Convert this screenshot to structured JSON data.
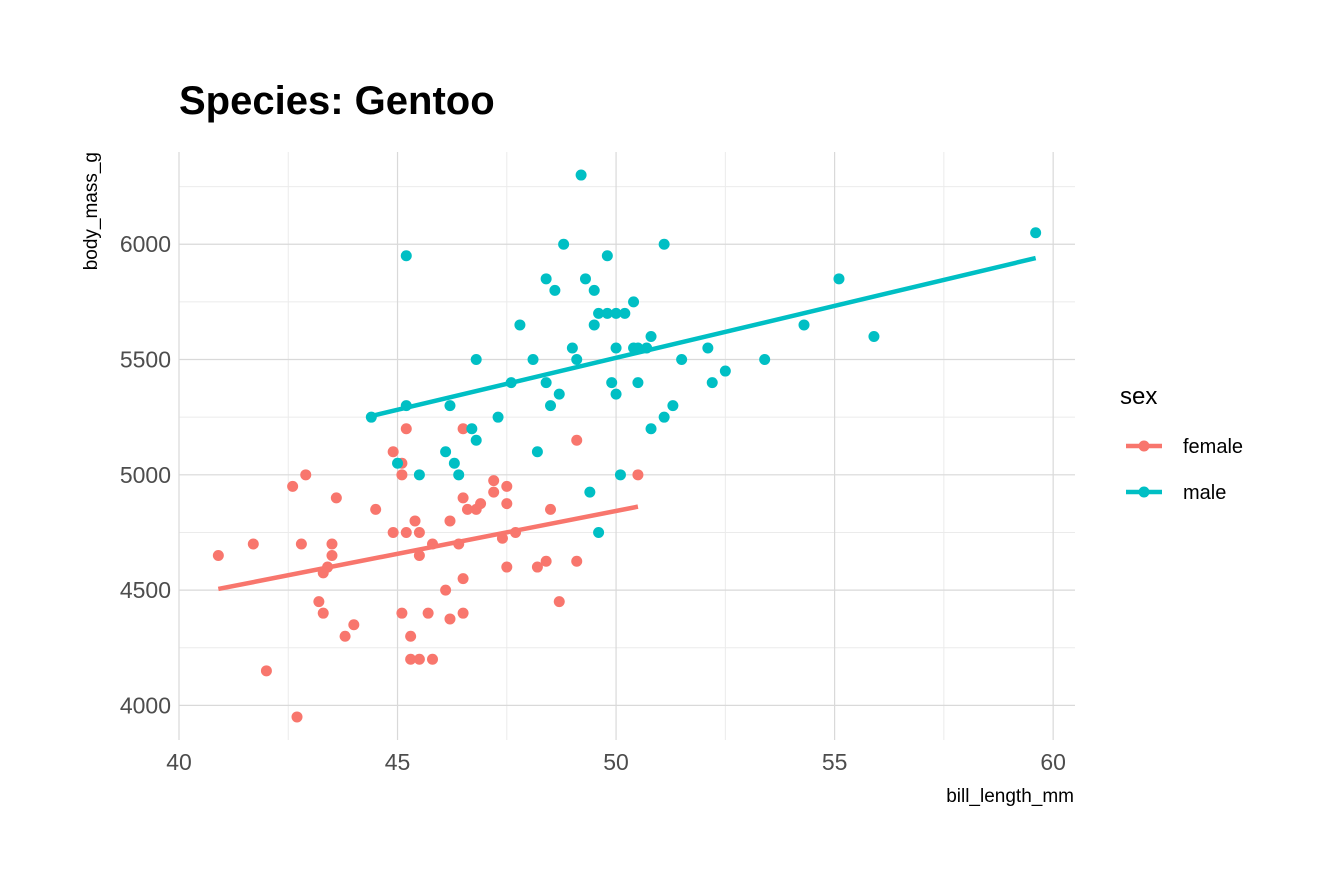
{
  "chart_data": {
    "type": "scatter",
    "title": "Species: Gentoo",
    "xlabel": "bill_length_mm",
    "ylabel": "body_mass_g",
    "xlim": [
      40,
      60.5
    ],
    "ylim": [
      3850,
      6400
    ],
    "xticks": [
      40,
      45,
      50,
      55,
      60
    ],
    "yticks": [
      4000,
      4500,
      5000,
      5500,
      6000
    ],
    "grid": true,
    "legend": {
      "title": "sex",
      "position": "right"
    },
    "series": [
      {
        "name": "female",
        "color": "#F8766D",
        "points": [
          [
            40.9,
            4650
          ],
          [
            41.7,
            4700
          ],
          [
            42.0,
            4150
          ],
          [
            42.6,
            4950
          ],
          [
            42.7,
            3950
          ],
          [
            42.8,
            4700
          ],
          [
            42.9,
            5000
          ],
          [
            43.2,
            4450
          ],
          [
            43.3,
            4575
          ],
          [
            43.3,
            4400
          ],
          [
            43.4,
            4600
          ],
          [
            43.5,
            4650
          ],
          [
            43.5,
            4700
          ],
          [
            43.6,
            4900
          ],
          [
            43.8,
            4300
          ],
          [
            44.0,
            4350
          ],
          [
            44.5,
            4850
          ],
          [
            44.9,
            4750
          ],
          [
            44.9,
            5100
          ],
          [
            45.1,
            5050
          ],
          [
            45.1,
            5000
          ],
          [
            45.1,
            4400
          ],
          [
            45.2,
            5200
          ],
          [
            45.2,
            4750
          ],
          [
            45.3,
            4300
          ],
          [
            45.3,
            4200
          ],
          [
            45.4,
            4800
          ],
          [
            45.5,
            4750
          ],
          [
            45.5,
            4650
          ],
          [
            45.5,
            4200
          ],
          [
            45.7,
            4400
          ],
          [
            45.8,
            4700
          ],
          [
            45.8,
            4200
          ],
          [
            46.1,
            4500
          ],
          [
            46.2,
            4800
          ],
          [
            46.2,
            4375
          ],
          [
            46.4,
            4700
          ],
          [
            46.5,
            4900
          ],
          [
            46.5,
            4550
          ],
          [
            46.5,
            4400
          ],
          [
            46.5,
            5200
          ],
          [
            46.6,
            4850
          ],
          [
            46.8,
            4850
          ],
          [
            46.9,
            4875
          ],
          [
            47.2,
            4975
          ],
          [
            47.2,
            4925
          ],
          [
            47.4,
            4725
          ],
          [
            47.5,
            4875
          ],
          [
            47.5,
            4600
          ],
          [
            47.5,
            4950
          ],
          [
            47.7,
            4750
          ],
          [
            48.2,
            4600
          ],
          [
            48.4,
            4625
          ],
          [
            48.5,
            4850
          ],
          [
            48.7,
            4450
          ],
          [
            49.1,
            4625
          ],
          [
            49.1,
            5150
          ],
          [
            50.5,
            5000
          ]
        ],
        "trend": [
          [
            40.9,
            4505
          ],
          [
            50.5,
            4862
          ]
        ]
      },
      {
        "name": "male",
        "color": "#00BFC4",
        "points": [
          [
            44.4,
            5250
          ],
          [
            45.0,
            5050
          ],
          [
            45.2,
            5950
          ],
          [
            45.2,
            5300
          ],
          [
            45.5,
            5000
          ],
          [
            46.1,
            5100
          ],
          [
            46.2,
            5300
          ],
          [
            46.3,
            5050
          ],
          [
            46.4,
            5000
          ],
          [
            46.7,
            5200
          ],
          [
            46.8,
            5500
          ],
          [
            46.8,
            5150
          ],
          [
            47.3,
            5250
          ],
          [
            47.6,
            5400
          ],
          [
            47.8,
            5650
          ],
          [
            48.1,
            5500
          ],
          [
            48.2,
            5100
          ],
          [
            48.4,
            5850
          ],
          [
            48.4,
            5400
          ],
          [
            48.5,
            5300
          ],
          [
            48.6,
            5800
          ],
          [
            48.7,
            5350
          ],
          [
            48.8,
            6000
          ],
          [
            49.0,
            5550
          ],
          [
            49.1,
            5500
          ],
          [
            49.2,
            6300
          ],
          [
            49.3,
            5850
          ],
          [
            49.4,
            4925
          ],
          [
            49.5,
            5800
          ],
          [
            49.5,
            5650
          ],
          [
            49.6,
            5700
          ],
          [
            49.6,
            4750
          ],
          [
            49.8,
            5950
          ],
          [
            49.8,
            5700
          ],
          [
            49.9,
            5400
          ],
          [
            50.0,
            5700
          ],
          [
            50.0,
            5550
          ],
          [
            50.0,
            5350
          ],
          [
            50.1,
            5000
          ],
          [
            50.2,
            5700
          ],
          [
            50.4,
            5750
          ],
          [
            50.4,
            5550
          ],
          [
            50.5,
            5550
          ],
          [
            50.5,
            5400
          ],
          [
            50.7,
            5550
          ],
          [
            50.8,
            5600
          ],
          [
            50.8,
            5200
          ],
          [
            51.1,
            6000
          ],
          [
            51.1,
            5250
          ],
          [
            51.3,
            5300
          ],
          [
            51.5,
            5500
          ],
          [
            52.1,
            5550
          ],
          [
            52.2,
            5400
          ],
          [
            52.5,
            5450
          ],
          [
            53.4,
            5500
          ],
          [
            54.3,
            5650
          ],
          [
            55.1,
            5850
          ],
          [
            55.9,
            5600
          ],
          [
            59.6,
            6050
          ]
        ],
        "trend": [
          [
            44.4,
            5255
          ],
          [
            59.6,
            5940
          ]
        ]
      }
    ]
  }
}
